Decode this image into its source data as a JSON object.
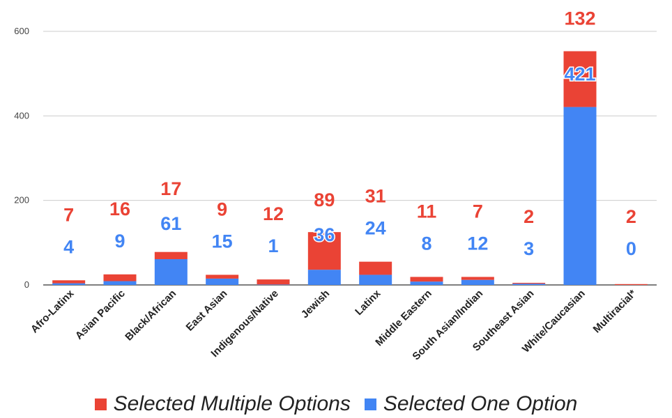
{
  "chart_data": {
    "type": "bar",
    "stacked": true,
    "categories": [
      "Afro-Latinx",
      "Asian Pacific",
      "Black/African",
      "East Asian",
      "Indigenous/Native",
      "Jewish",
      "Latinx",
      "Middle Eastern",
      "South Asian/Indian",
      "Southeast Asian",
      "White/Caucasian",
      "Multiracial*"
    ],
    "series": [
      {
        "name": "Selected One Option",
        "color": "#4285F4",
        "values": [
          4,
          9,
          61,
          15,
          1,
          36,
          24,
          8,
          12,
          3,
          421,
          0
        ]
      },
      {
        "name": "Selected Multiple Options",
        "color": "#EA4335",
        "values": [
          7,
          16,
          17,
          9,
          12,
          89,
          31,
          11,
          7,
          2,
          132,
          2
        ]
      }
    ],
    "y_ticks": [
      0,
      200,
      400,
      600
    ],
    "ylim": [
      0,
      600
    ],
    "grid": true,
    "legend_position": "bottom",
    "legend_order": [
      "Selected Multiple Options",
      "Selected One Option"
    ],
    "title": "",
    "xlabel": "",
    "ylabel": ""
  }
}
